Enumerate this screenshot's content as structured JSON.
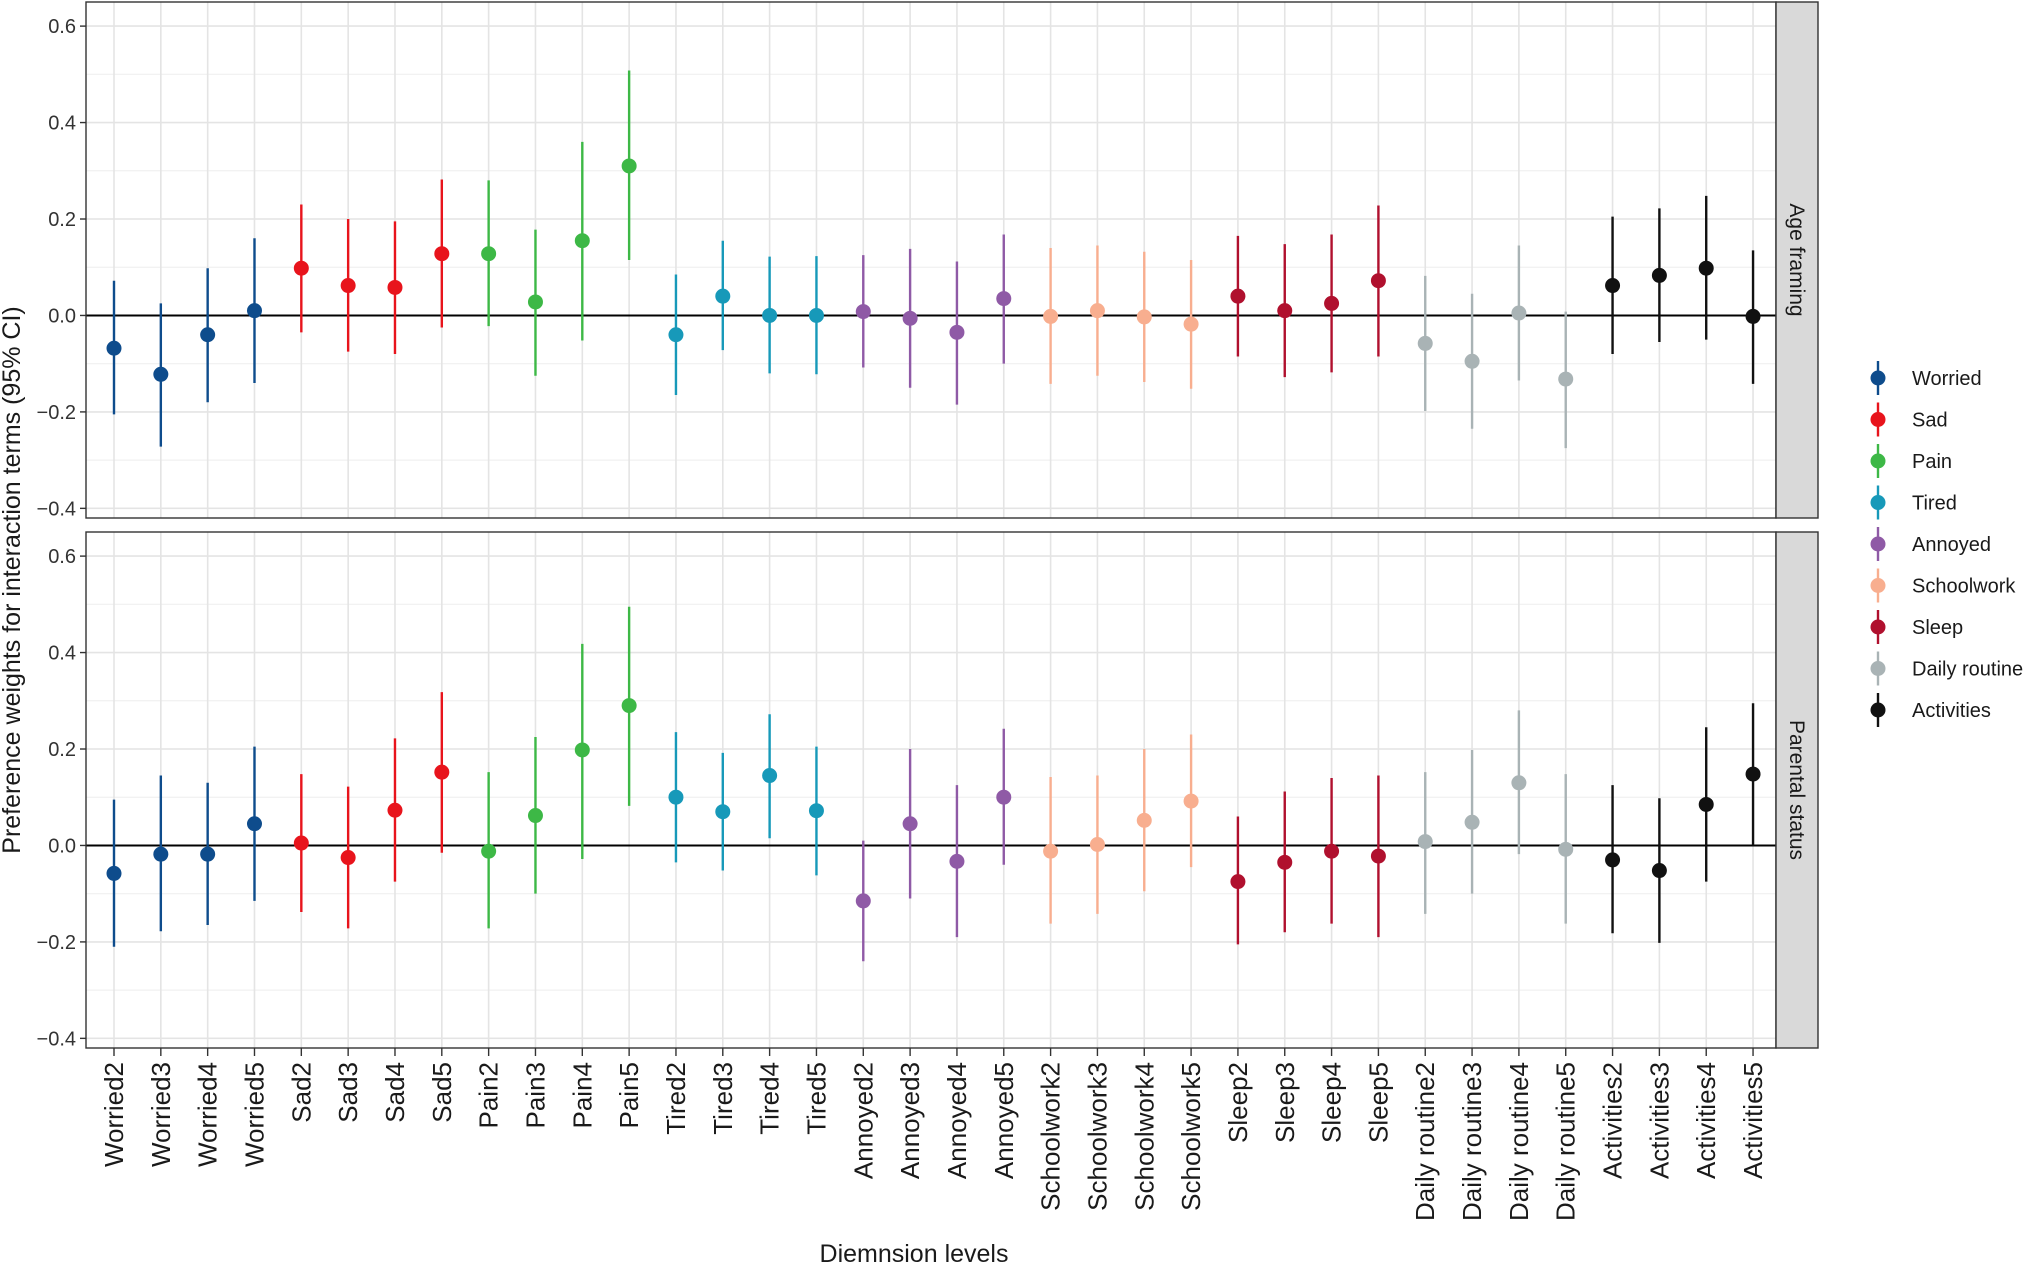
{
  "chart_data": {
    "type": "scatter",
    "subtype": "point-range (estimate with 95% CI), faceted",
    "xlabel": "Diemnsion levels",
    "ylabel": "Preference weights for interaction terms (95% CI)",
    "ylim": [
      -0.42,
      0.65
    ],
    "yticks": [
      -0.4,
      -0.2,
      0.0,
      0.2,
      0.4,
      0.6
    ],
    "ytick_labels": [
      "−0.4",
      "−0.2",
      "0.0",
      "0.2",
      "0.4",
      "0.6"
    ],
    "reference_line": 0,
    "grid": true,
    "legend_position": "right",
    "categories": [
      "Worried2",
      "Worried3",
      "Worried4",
      "Worried5",
      "Sad2",
      "Sad3",
      "Sad4",
      "Sad5",
      "Pain2",
      "Pain3",
      "Pain4",
      "Pain5",
      "Tired2",
      "Tired3",
      "Tired4",
      "Tired5",
      "Annoyed2",
      "Annoyed3",
      "Annoyed4",
      "Annoyed5",
      "Schoolwork2",
      "Schoolwork3",
      "Schoolwork4",
      "Schoolwork5",
      "Sleep2",
      "Sleep3",
      "Sleep4",
      "Sleep5",
      "Daily routine2",
      "Daily routine3",
      "Daily routine4",
      "Daily routine5",
      "Activities2",
      "Activities3",
      "Activities4",
      "Activities5"
    ],
    "groups": [
      {
        "name": "Worried",
        "color": "#0e4c8c"
      },
      {
        "name": "Sad",
        "color": "#e8141c"
      },
      {
        "name": "Pain",
        "color": "#3db846"
      },
      {
        "name": "Tired",
        "color": "#1799b9"
      },
      {
        "name": "Annoyed",
        "color": "#8f5aa6"
      },
      {
        "name": "Schoolwork",
        "color": "#f8ae8f"
      },
      {
        "name": "Sleep",
        "color": "#b0102e"
      },
      {
        "name": "Daily routine",
        "color": "#a9b3b5"
      },
      {
        "name": "Activities",
        "color": "#111111"
      }
    ],
    "panels": [
      {
        "strip_label": "Age framing",
        "est": [
          -0.068,
          -0.122,
          -0.04,
          0.01,
          0.098,
          0.062,
          0.058,
          0.128,
          0.128,
          0.028,
          0.155,
          0.31,
          -0.04,
          0.04,
          0.0,
          0.0,
          0.008,
          -0.006,
          -0.035,
          0.035,
          -0.002,
          0.01,
          -0.003,
          -0.018,
          0.04,
          0.01,
          0.025,
          0.072,
          -0.058,
          -0.095,
          0.005,
          -0.132,
          0.062,
          0.083,
          0.098,
          -0.002
        ],
        "lo": [
          -0.205,
          -0.272,
          -0.18,
          -0.14,
          -0.035,
          -0.075,
          -0.08,
          -0.025,
          -0.022,
          -0.125,
          -0.052,
          0.115,
          -0.165,
          -0.072,
          -0.12,
          -0.122,
          -0.108,
          -0.15,
          -0.185,
          -0.1,
          -0.142,
          -0.125,
          -0.138,
          -0.152,
          -0.085,
          -0.128,
          -0.118,
          -0.085,
          -0.198,
          -0.235,
          -0.135,
          -0.275,
          -0.08,
          -0.055,
          -0.05,
          -0.142
        ],
        "hi": [
          0.072,
          0.025,
          0.098,
          0.16,
          0.23,
          0.2,
          0.195,
          0.282,
          0.28,
          0.178,
          0.36,
          0.508,
          0.085,
          0.155,
          0.122,
          0.123,
          0.125,
          0.138,
          0.112,
          0.168,
          0.14,
          0.145,
          0.132,
          0.115,
          0.165,
          0.148,
          0.168,
          0.228,
          0.082,
          0.045,
          0.145,
          0.008,
          0.205,
          0.222,
          0.248,
          0.135
        ]
      },
      {
        "strip_label": "Parental status",
        "est": [
          -0.058,
          -0.018,
          -0.018,
          0.045,
          0.005,
          -0.025,
          0.073,
          0.152,
          -0.012,
          0.062,
          0.198,
          0.29,
          0.1,
          0.07,
          0.145,
          0.072,
          -0.115,
          0.045,
          -0.033,
          0.1,
          -0.012,
          0.002,
          0.052,
          0.092,
          -0.075,
          -0.035,
          -0.012,
          -0.022,
          0.008,
          0.048,
          0.13,
          -0.008,
          -0.03,
          -0.052,
          0.085,
          0.148
        ],
        "lo": [
          -0.21,
          -0.178,
          -0.165,
          -0.115,
          -0.138,
          -0.172,
          -0.075,
          -0.015,
          -0.172,
          -0.1,
          -0.028,
          0.082,
          -0.035,
          -0.052,
          0.015,
          -0.062,
          -0.24,
          -0.11,
          -0.19,
          -0.04,
          -0.162,
          -0.142,
          -0.095,
          -0.045,
          -0.205,
          -0.18,
          -0.162,
          -0.19,
          -0.142,
          -0.1,
          -0.018,
          -0.162,
          -0.182,
          -0.202,
          -0.075,
          0.0
        ],
        "hi": [
          0.095,
          0.145,
          0.13,
          0.205,
          0.148,
          0.122,
          0.222,
          0.318,
          0.152,
          0.225,
          0.418,
          0.495,
          0.235,
          0.192,
          0.272,
          0.205,
          0.01,
          0.2,
          0.125,
          0.242,
          0.142,
          0.145,
          0.2,
          0.23,
          0.06,
          0.112,
          0.14,
          0.145,
          0.152,
          0.198,
          0.28,
          0.148,
          0.125,
          0.098,
          0.245,
          0.295
        ]
      }
    ]
  }
}
